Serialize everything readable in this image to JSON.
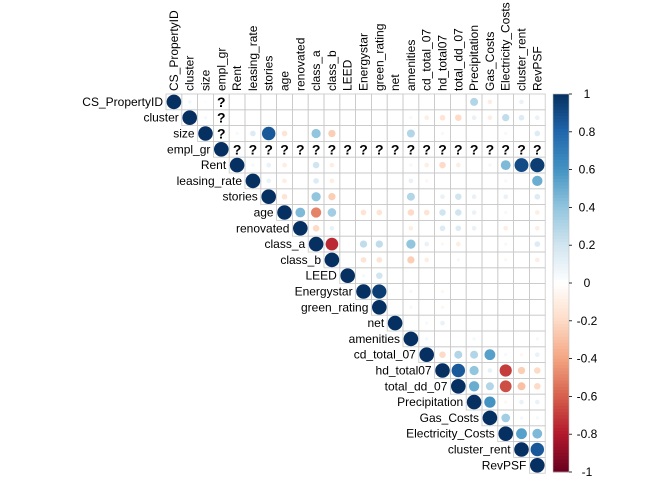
{
  "chart_data": {
    "type": "heatmap",
    "subtype": "correlation-upper-circle",
    "variables": [
      "CS_PropertyID",
      "cluster",
      "size",
      "empl_gr",
      "Rent",
      "leasing_rate",
      "stories",
      "age",
      "renovated",
      "class_a",
      "class_b",
      "LEED",
      "Energystar",
      "green_rating",
      "net",
      "amenities",
      "cd_total_07",
      "hd_total07",
      "total_dd_07",
      "Precipitation",
      "Gas_Costs",
      "Electricity_Costs",
      "cluster_rent",
      "RevPSF"
    ],
    "missing_symbol": "?",
    "missing_cells": [
      [
        0,
        3
      ],
      [
        1,
        3
      ],
      [
        2,
        3
      ],
      [
        3,
        4
      ],
      [
        3,
        5
      ],
      [
        3,
        6
      ],
      [
        3,
        7
      ],
      [
        3,
        8
      ],
      [
        3,
        9
      ],
      [
        3,
        10
      ],
      [
        3,
        11
      ],
      [
        3,
        12
      ],
      [
        3,
        13
      ],
      [
        3,
        14
      ],
      [
        3,
        15
      ],
      [
        3,
        16
      ],
      [
        3,
        17
      ],
      [
        3,
        18
      ],
      [
        3,
        19
      ],
      [
        3,
        20
      ],
      [
        3,
        21
      ],
      [
        3,
        22
      ],
      [
        3,
        23
      ]
    ],
    "correlations": [
      {
        "i": 0,
        "j": 0,
        "r": 1
      },
      {
        "i": 0,
        "j": 1,
        "r": 0.06
      },
      {
        "i": 0,
        "j": 2,
        "r": 0.02
      },
      {
        "i": 0,
        "j": 19,
        "r": 0.3
      },
      {
        "i": 0,
        "j": 20,
        "r": -0.1
      },
      {
        "i": 0,
        "j": 22,
        "r": 0.1
      },
      {
        "i": 1,
        "j": 1,
        "r": 1
      },
      {
        "i": 1,
        "j": 2,
        "r": 0.05
      },
      {
        "i": 1,
        "j": 15,
        "r": 0.05
      },
      {
        "i": 1,
        "j": 16,
        "r": -0.1
      },
      {
        "i": 1,
        "j": 17,
        "r": -0.15
      },
      {
        "i": 1,
        "j": 18,
        "r": -0.2
      },
      {
        "i": 1,
        "j": 19,
        "r": 0.1
      },
      {
        "i": 1,
        "j": 20,
        "r": -0.1
      },
      {
        "i": 1,
        "j": 21,
        "r": 0.25
      },
      {
        "i": 1,
        "j": 22,
        "r": 0.15
      },
      {
        "i": 1,
        "j": 23,
        "r": 0.1
      },
      {
        "i": 2,
        "j": 2,
        "r": 1
      },
      {
        "i": 2,
        "j": 4,
        "r": 0.05
      },
      {
        "i": 2,
        "j": 5,
        "r": 0.15
      },
      {
        "i": 2,
        "j": 6,
        "r": 0.85
      },
      {
        "i": 2,
        "j": 7,
        "r": -0.15
      },
      {
        "i": 2,
        "j": 9,
        "r": 0.4
      },
      {
        "i": 2,
        "j": 10,
        "r": -0.25
      },
      {
        "i": 2,
        "j": 15,
        "r": 0.3
      },
      {
        "i": 2,
        "j": 17,
        "r": 0.05
      },
      {
        "i": 2,
        "j": 21,
        "r": 0.05
      },
      {
        "i": 2,
        "j": 23,
        "r": 0.15
      },
      {
        "i": 3,
        "j": 3,
        "r": 1
      },
      {
        "i": 4,
        "j": 4,
        "r": 1
      },
      {
        "i": 4,
        "j": 5,
        "r": 0.05
      },
      {
        "i": 4,
        "j": 6,
        "r": 0.1
      },
      {
        "i": 4,
        "j": 7,
        "r": -0.1
      },
      {
        "i": 4,
        "j": 9,
        "r": 0.2
      },
      {
        "i": 4,
        "j": 10,
        "r": -0.1
      },
      {
        "i": 4,
        "j": 15,
        "r": 0.05
      },
      {
        "i": 4,
        "j": 16,
        "r": -0.1
      },
      {
        "i": 4,
        "j": 17,
        "r": -0.2
      },
      {
        "i": 4,
        "j": 18,
        "r": -0.1
      },
      {
        "i": 4,
        "j": 20,
        "r": 0.05
      },
      {
        "i": 4,
        "j": 21,
        "r": 0.45
      },
      {
        "i": 4,
        "j": 22,
        "r": 0.9
      },
      {
        "i": 4,
        "j": 23,
        "r": 0.95
      },
      {
        "i": 5,
        "j": 5,
        "r": 1
      },
      {
        "i": 5,
        "j": 6,
        "r": 0.1
      },
      {
        "i": 5,
        "j": 7,
        "r": -0.1
      },
      {
        "i": 5,
        "j": 9,
        "r": 0.15
      },
      {
        "i": 5,
        "j": 10,
        "r": -0.1
      },
      {
        "i": 5,
        "j": 15,
        "r": 0.1
      },
      {
        "i": 5,
        "j": 16,
        "r": -0.05
      },
      {
        "i": 5,
        "j": 21,
        "r": -0.05
      },
      {
        "i": 5,
        "j": 23,
        "r": 0.5
      },
      {
        "i": 6,
        "j": 6,
        "r": 1
      },
      {
        "i": 6,
        "j": 7,
        "r": -0.15
      },
      {
        "i": 6,
        "j": 9,
        "r": 0.4
      },
      {
        "i": 6,
        "j": 10,
        "r": -0.25
      },
      {
        "i": 6,
        "j": 15,
        "r": 0.3
      },
      {
        "i": 6,
        "j": 17,
        "r": 0.1
      },
      {
        "i": 6,
        "j": 18,
        "r": 0.2
      },
      {
        "i": 6,
        "j": 19,
        "r": 0.1
      },
      {
        "i": 6,
        "j": 21,
        "r": 0.1
      },
      {
        "i": 6,
        "j": 23,
        "r": 0.15
      },
      {
        "i": 7,
        "j": 7,
        "r": 1
      },
      {
        "i": 7,
        "j": 8,
        "r": 0.45
      },
      {
        "i": 7,
        "j": 9,
        "r": -0.5
      },
      {
        "i": 7,
        "j": 10,
        "r": 0.35
      },
      {
        "i": 7,
        "j": 12,
        "r": -0.15
      },
      {
        "i": 7,
        "j": 13,
        "r": -0.15
      },
      {
        "i": 7,
        "j": 15,
        "r": -0.2
      },
      {
        "i": 7,
        "j": 16,
        "r": -0.15
      },
      {
        "i": 7,
        "j": 17,
        "r": 0.2
      },
      {
        "i": 7,
        "j": 18,
        "r": 0.2
      },
      {
        "i": 7,
        "j": 19,
        "r": 0.1
      },
      {
        "i": 7,
        "j": 21,
        "r": 0.05
      },
      {
        "i": 7,
        "j": 23,
        "r": -0.1
      },
      {
        "i": 8,
        "j": 8,
        "r": 1
      },
      {
        "i": 8,
        "j": 9,
        "r": -0.2
      },
      {
        "i": 8,
        "j": 10,
        "r": 0.1
      },
      {
        "i": 8,
        "j": 15,
        "r": -0.1
      },
      {
        "i": 8,
        "j": 17,
        "r": 0.15
      },
      {
        "i": 8,
        "j": 18,
        "r": 0.15
      },
      {
        "i": 8,
        "j": 19,
        "r": 0.1
      },
      {
        "i": 8,
        "j": 21,
        "r": -0.1
      },
      {
        "i": 8,
        "j": 23,
        "r": -0.1
      },
      {
        "i": 9,
        "j": 9,
        "r": 1
      },
      {
        "i": 9,
        "j": 10,
        "r": -0.75
      },
      {
        "i": 9,
        "j": 12,
        "r": 0.25
      },
      {
        "i": 9,
        "j": 13,
        "r": 0.25
      },
      {
        "i": 9,
        "j": 15,
        "r": 0.4
      },
      {
        "i": 9,
        "j": 16,
        "r": 0.1
      },
      {
        "i": 9,
        "j": 17,
        "r": -0.05
      },
      {
        "i": 9,
        "j": 18,
        "r": -0.1
      },
      {
        "i": 9,
        "j": 21,
        "r": 0.05
      },
      {
        "i": 9,
        "j": 23,
        "r": 0.15
      },
      {
        "i": 10,
        "j": 10,
        "r": 1
      },
      {
        "i": 10,
        "j": 12,
        "r": -0.15
      },
      {
        "i": 10,
        "j": 13,
        "r": -0.15
      },
      {
        "i": 10,
        "j": 15,
        "r": -0.25
      },
      {
        "i": 10,
        "j": 16,
        "r": -0.1
      },
      {
        "i": 10,
        "j": 18,
        "r": 0.05
      },
      {
        "i": 10,
        "j": 21,
        "r": -0.05
      },
      {
        "i": 10,
        "j": 23,
        "r": -0.1
      },
      {
        "i": 11,
        "j": 11,
        "r": 1
      },
      {
        "i": 11,
        "j": 12,
        "r": 0.05
      },
      {
        "i": 11,
        "j": 13,
        "r": 0.2
      },
      {
        "i": 12,
        "j": 12,
        "r": 1
      },
      {
        "i": 12,
        "j": 13,
        "r": 0.95
      },
      {
        "i": 12,
        "j": 15,
        "r": 0.05
      },
      {
        "i": 12,
        "j": 17,
        "r": -0.05
      },
      {
        "i": 13,
        "j": 13,
        "r": 1
      },
      {
        "i": 13,
        "j": 15,
        "r": 0.05
      },
      {
        "i": 13,
        "j": 17,
        "r": -0.05
      },
      {
        "i": 14,
        "j": 14,
        "r": 1
      },
      {
        "i": 14,
        "j": 16,
        "r": 0.05
      },
      {
        "i": 14,
        "j": 17,
        "r": 0.1
      },
      {
        "i": 15,
        "j": 15,
        "r": 1
      },
      {
        "i": 15,
        "j": 16,
        "r": 0.05
      },
      {
        "i": 15,
        "j": 19,
        "r": 0.05
      },
      {
        "i": 15,
        "j": 23,
        "r": 0.05
      },
      {
        "i": 16,
        "j": 16,
        "r": 1
      },
      {
        "i": 16,
        "j": 17,
        "r": -0.2
      },
      {
        "i": 16,
        "j": 18,
        "r": 0.3
      },
      {
        "i": 16,
        "j": 19,
        "r": 0.3
      },
      {
        "i": 16,
        "j": 20,
        "r": 0.55
      },
      {
        "i": 16,
        "j": 21,
        "r": 0.05
      },
      {
        "i": 16,
        "j": 22,
        "r": -0.05
      },
      {
        "i": 16,
        "j": 23,
        "r": 0.1
      },
      {
        "i": 17,
        "j": 17,
        "r": 1
      },
      {
        "i": 17,
        "j": 18,
        "r": 0.85
      },
      {
        "i": 17,
        "j": 19,
        "r": 0.4
      },
      {
        "i": 17,
        "j": 20,
        "r": 0.1
      },
      {
        "i": 17,
        "j": 21,
        "r": -0.7
      },
      {
        "i": 17,
        "j": 22,
        "r": -0.25
      },
      {
        "i": 17,
        "j": 23,
        "r": -0.2
      },
      {
        "i": 18,
        "j": 18,
        "r": 1
      },
      {
        "i": 18,
        "j": 19,
        "r": 0.5
      },
      {
        "i": 18,
        "j": 20,
        "r": 0.3
      },
      {
        "i": 18,
        "j": 21,
        "r": -0.65
      },
      {
        "i": 18,
        "j": 22,
        "r": -0.3
      },
      {
        "i": 18,
        "j": 23,
        "r": -0.2
      },
      {
        "i": 19,
        "j": 19,
        "r": 1
      },
      {
        "i": 19,
        "j": 20,
        "r": 0.6
      },
      {
        "i": 19,
        "j": 21,
        "r": -0.05
      },
      {
        "i": 19,
        "j": 22,
        "r": 0.1
      },
      {
        "i": 19,
        "j": 23,
        "r": 0.1
      },
      {
        "i": 20,
        "j": 20,
        "r": 1
      },
      {
        "i": 20,
        "j": 21,
        "r": 0.35
      },
      {
        "i": 20,
        "j": 22,
        "r": 0.05
      },
      {
        "i": 20,
        "j": 23,
        "r": 0.05
      },
      {
        "i": 21,
        "j": 21,
        "r": 1
      },
      {
        "i": 21,
        "j": 22,
        "r": 0.55
      },
      {
        "i": 21,
        "j": 23,
        "r": 0.45
      },
      {
        "i": 22,
        "j": 22,
        "r": 1
      },
      {
        "i": 22,
        "j": 23,
        "r": 0.85
      },
      {
        "i": 23,
        "j": 23,
        "r": 1
      }
    ],
    "colorbar": {
      "range": [
        -1,
        1
      ],
      "ticks": [
        "-1",
        "-0.8",
        "-0.6",
        "-0.4",
        "-0.2",
        "0",
        "0.2",
        "0.4",
        "0.6",
        "0.8",
        "1"
      ],
      "tick_values": [
        -1,
        -0.8,
        -0.6,
        -0.4,
        -0.2,
        0,
        0.2,
        0.4,
        0.6,
        0.8,
        1
      ],
      "colors": [
        "#67001F",
        "#B2182B",
        "#D6604D",
        "#F4A582",
        "#FDDBC7",
        "#FFFFFF",
        "#D1E5F0",
        "#92C5DE",
        "#4393C3",
        "#2166AC",
        "#053061"
      ]
    },
    "grid": true,
    "title": "",
    "xlabel": "",
    "ylabel": ""
  }
}
